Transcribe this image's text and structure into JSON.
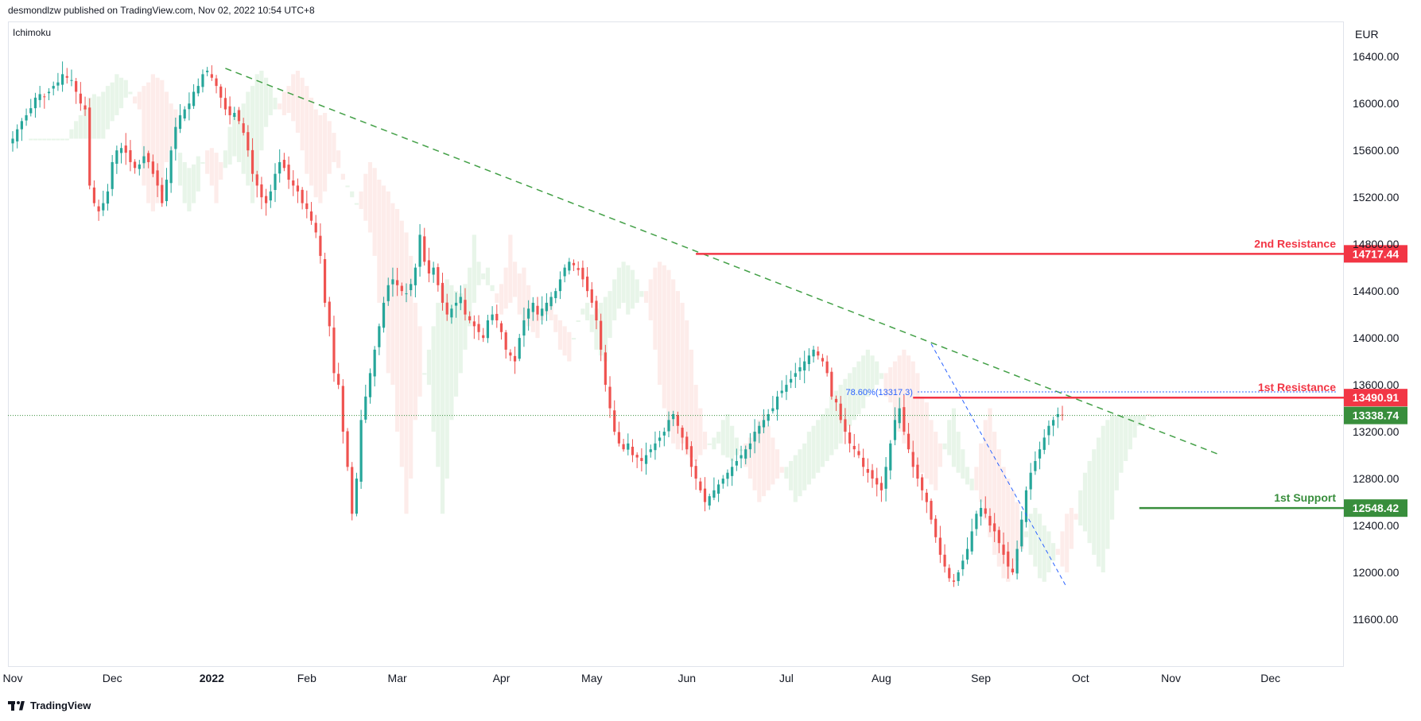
{
  "header": {
    "published": "desmondlzw published on TradingView.com, Nov 02, 2022 10:54 UTC+8"
  },
  "indicator": {
    "name": "Ichimoku"
  },
  "footer": {
    "brand": "TradingView"
  },
  "colors": {
    "up": "#26a69a",
    "down": "#ef5350",
    "resistance": "#f23645",
    "support": "#388e3c",
    "trend": "#43a047",
    "fib": "#2962ff",
    "cloud_green": "#e8f5e9",
    "cloud_red": "#fdecea"
  },
  "chart_data": {
    "type": "candlestick",
    "currency": "EUR",
    "ylim": [
      11200,
      16700
    ],
    "yticks": [
      16400,
      16000,
      15600,
      15200,
      14800,
      14400,
      14000,
      13600,
      13200,
      12800,
      12400,
      12000,
      11600
    ],
    "ytick_labels": [
      "16400.00",
      "16000.00",
      "15600.00",
      "15200.00",
      "14800.00",
      "14400.00",
      "14000.00",
      "13600.00",
      "13200.00",
      "12800.00",
      "12400.00",
      "12000.00",
      "11600.00"
    ],
    "xticks": [
      {
        "label": "Nov",
        "i": 0
      },
      {
        "label": "Dec",
        "i": 22
      },
      {
        "label": "2022",
        "i": 44,
        "bold": true
      },
      {
        "label": "Feb",
        "i": 65
      },
      {
        "label": "Mar",
        "i": 85
      },
      {
        "label": "Apr",
        "i": 108
      },
      {
        "label": "May",
        "i": 128
      },
      {
        "label": "Jun",
        "i": 149
      },
      {
        "label": "Jul",
        "i": 171
      },
      {
        "label": "Aug",
        "i": 192
      },
      {
        "label": "Sep",
        "i": 214
      },
      {
        "label": "Oct",
        "i": 236
      },
      {
        "label": "Nov",
        "i": 256
      },
      {
        "label": "Dec",
        "i": 278
      }
    ],
    "levels": [
      {
        "name": "2nd Resistance",
        "value": 14717.44,
        "label": "14717.44",
        "type": "resistance",
        "from_i": 151
      },
      {
        "name": "1st Resistance",
        "value": 13490.91,
        "label": "13490.91",
        "type": "resistance",
        "from_i": 199
      },
      {
        "name": "1st Support",
        "value": 12548.42,
        "label": "12548.42",
        "type": "support",
        "from_i": 249
      }
    ],
    "last_price": {
      "value": 13338.74,
      "label": "13338.74"
    },
    "fib": {
      "label": "78.60%(13317.3)",
      "value": 13540,
      "from_i": 200,
      "to_i": 273
    },
    "trendline": {
      "points": [
        [
          47,
          16300
        ],
        [
          267,
          13000
        ]
      ]
    },
    "fib_drawline": {
      "points": [
        [
          203,
          13950
        ],
        [
          233,
          11870
        ]
      ]
    },
    "close": [
      15700,
      15780,
      15850,
      15900,
      15960,
      16050,
      16080,
      16060,
      16100,
      16150,
      16180,
      16250,
      16220,
      16200,
      16100,
      16000,
      15950,
      15300,
      15150,
      15080,
      15150,
      15250,
      15500,
      15600,
      15620,
      15580,
      15500,
      15450,
      15480,
      15550,
      15500,
      15400,
      15300,
      15150,
      15350,
      15600,
      15800,
      15900,
      15950,
      16000,
      16100,
      16150,
      16250,
      16280,
      16220,
      16150,
      16050,
      15950,
      15900,
      15920,
      15850,
      15750,
      15600,
      15400,
      15300,
      15200,
      15150,
      15250,
      15400,
      15500,
      15450,
      15350,
      15300,
      15250,
      15150,
      15100,
      15000,
      14900,
      14700,
      14300,
      14100,
      13700,
      13600,
      13200,
      12900,
      12500,
      12800,
      13300,
      13500,
      13700,
      13900,
      14100,
      14300,
      14450,
      14500,
      14450,
      14400,
      14380,
      14460,
      14600,
      14880,
      14650,
      14550,
      14600,
      14450,
      14300,
      14200,
      14250,
      14300,
      14350,
      14200,
      14150,
      14100,
      14050,
      14000,
      14150,
      14200,
      14150,
      14050,
      13900,
      13850,
      13800,
      14000,
      14150,
      14250,
      14300,
      14200,
      14250,
      14300,
      14350,
      14400,
      14500,
      14600,
      14650,
      14620,
      14580,
      14500,
      14400,
      14300,
      14150,
      13900,
      13600,
      13400,
      13200,
      13100,
      13050,
      13100,
      13000,
      12980,
      12950,
      13000,
      13050,
      13100,
      13150,
      13200,
      13300,
      13350,
      13250,
      13150,
      13050,
      12900,
      12800,
      12700,
      12600,
      12650,
      12700,
      12750,
      12800,
      12850,
      12900,
      12950,
      13000,
      13050,
      13100,
      13200,
      13250,
      13300,
      13350,
      13400,
      13500,
      13550,
      13600,
      13650,
      13700,
      13750,
      13800,
      13850,
      13900,
      13850,
      13800,
      13700,
      13500,
      13450,
      13300,
      13200,
      13100,
      13050,
      13000,
      12900,
      12850,
      12800,
      12750,
      12700,
      12900,
      13100,
      13300,
      13400,
      13200,
      13050,
      12900,
      12800,
      12700,
      12600,
      12450,
      12300,
      12150,
      12050,
      11950,
      11920,
      12000,
      12100,
      12200,
      12350,
      12500,
      12550,
      12500,
      12400,
      12350,
      12250,
      12150,
      12050,
      12000,
      12200,
      12450,
      12700,
      12850,
      12950,
      13050,
      13150,
      13250,
      13300,
      13350,
      13338.74
    ]
  }
}
